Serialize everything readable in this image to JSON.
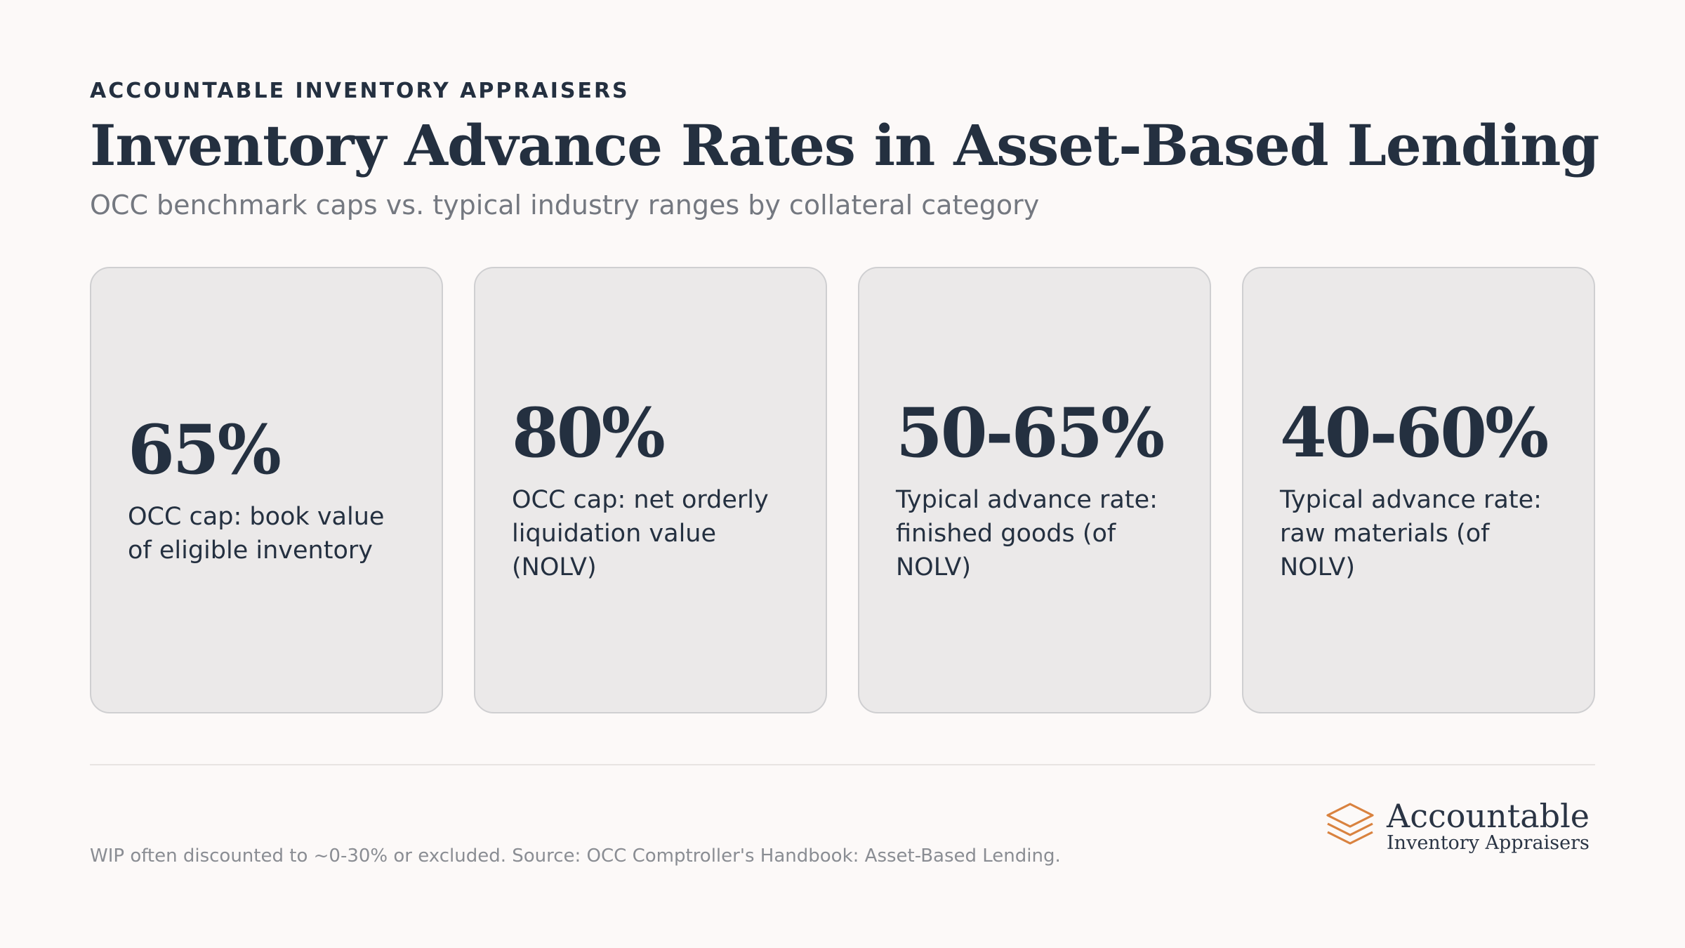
{
  "header": {
    "eyebrow": "ACCOUNTABLE INVENTORY APPRAISERS",
    "title": "Inventory Advance Rates in Asset-Based Lending",
    "subtitle": "OCC benchmark caps vs. typical industry ranges by collateral category"
  },
  "cards": [
    {
      "value": "65%",
      "label": "OCC cap: book value of eligible inventory"
    },
    {
      "value": "80%",
      "label": "OCC cap: net orderly liquidation value (NOLV)"
    },
    {
      "value": "50-65%",
      "label": "Typical advance rate: finished goods (of NOLV)"
    },
    {
      "value": "40-60%",
      "label": "Typical advance rate: raw materials (of NOLV)"
    }
  ],
  "footer": {
    "note": "WIP often discounted to ~0-30% or excluded. Source: OCC Comptroller's Handbook: Asset-Based Lending.",
    "logo_name": "Accountable",
    "logo_sub": "Inventory Appraisers",
    "logo_icon": "stacked-layers-icon"
  },
  "colors": {
    "background": "#fcf9f8",
    "card": "#ebe9e9",
    "text": "#243040",
    "muted": "#747880",
    "brand_accent": "#d9823f"
  }
}
